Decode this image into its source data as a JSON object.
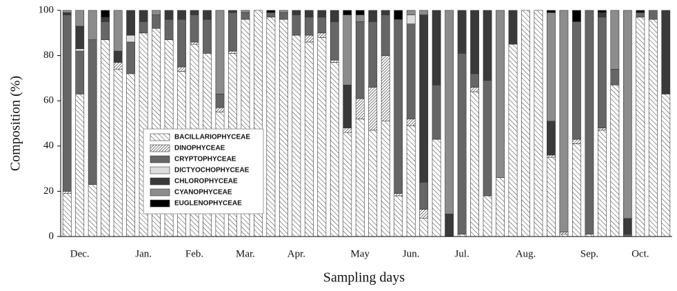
{
  "chart_data": {
    "type": "stacked_bar",
    "xlabel": "Sampling days",
    "ylabel": "Composition (%)",
    "categories": [
      null,
      "Dec.",
      null,
      null,
      null,
      null,
      "Jan.",
      null,
      null,
      null,
      "Feb.",
      null,
      null,
      null,
      "Mar.",
      null,
      null,
      null,
      "Apr.",
      null,
      null,
      null,
      null,
      "May",
      null,
      null,
      null,
      "Jun.",
      null,
      null,
      null,
      "Jul.",
      null,
      null,
      null,
      null,
      "Aug.",
      null,
      null,
      null,
      null,
      "Sep.",
      null,
      null,
      null,
      "Oct.",
      null,
      null
    ],
    "ylim": [
      0,
      100
    ],
    "yticks": [
      0,
      20,
      40,
      60,
      80,
      100
    ],
    "legend": "center-left",
    "series": [
      {
        "name": "BACILLARIOPHYCEAE",
        "color": "#ffffff",
        "hatch": "sparse",
        "values": [
          19,
          63,
          23,
          87,
          74,
          72,
          90,
          92,
          87,
          73,
          85,
          81,
          55,
          81,
          96,
          100,
          97,
          96,
          89,
          86,
          88,
          77,
          46,
          52,
          47,
          51,
          18,
          49,
          8,
          43,
          0,
          1,
          64,
          18,
          26,
          85,
          100,
          100,
          35,
          1,
          41,
          1,
          47,
          67,
          0,
          97,
          96,
          63
        ]
      },
      {
        "name": "DINOPHYCEAE",
        "color": "#ffffff",
        "hatch": "dense",
        "values": [
          1,
          0,
          0,
          0,
          3,
          0,
          0,
          0,
          0,
          2,
          1,
          0,
          2,
          1,
          0,
          0,
          0,
          0,
          0,
          3,
          2,
          1,
          2,
          9,
          19,
          29,
          1,
          3,
          4,
          0,
          0,
          0,
          2,
          0,
          0,
          0,
          0,
          0,
          1,
          1,
          2,
          0,
          1,
          0,
          0,
          0,
          0,
          0
        ]
      },
      {
        "name": "CRYPTOPHYCEAE",
        "color": "#666666",
        "values": [
          78,
          19,
          64,
          8,
          0,
          14,
          5,
          6,
          9,
          21,
          12,
          15,
          6,
          17,
          3,
          0,
          2,
          3,
          9,
          8,
          7,
          17,
          0,
          34,
          29,
          18,
          77,
          42,
          12,
          24,
          0,
          80,
          6,
          51,
          0,
          0,
          0,
          0,
          0,
          0,
          52,
          99,
          49,
          7,
          1,
          2,
          4,
          0
        ]
      },
      {
        "name": "DICTYOCHOPHYCEAE",
        "color": "#dddddd",
        "values": [
          0,
          1,
          0,
          0,
          0,
          3,
          0,
          0,
          0,
          0,
          0,
          0,
          0,
          0,
          0,
          0,
          0,
          0,
          0,
          0,
          0,
          0,
          0,
          0,
          0,
          0,
          0,
          4,
          0,
          0,
          0,
          0,
          0,
          0,
          0,
          0,
          0,
          0,
          0,
          0,
          0,
          0,
          0,
          0,
          0,
          0,
          0,
          0
        ]
      },
      {
        "name": "CHLOROPHYCEAE",
        "color": "#3a3a3a",
        "values": [
          1,
          10,
          0,
          2,
          5,
          11,
          5,
          0,
          4,
          4,
          2,
          4,
          0,
          1,
          0,
          0,
          0,
          0,
          2,
          3,
          3,
          5,
          19,
          0,
          5,
          2,
          0,
          0,
          74,
          33,
          10,
          19,
          28,
          31,
          0,
          15,
          0,
          0,
          15,
          0,
          0,
          0,
          2,
          0,
          7,
          0,
          0,
          37
        ]
      },
      {
        "name": "CYANOPHYCEAE",
        "color": "#8c8c8c",
        "values": [
          1,
          7,
          13,
          0,
          18,
          0,
          0,
          2,
          0,
          0,
          0,
          0,
          37,
          0,
          1,
          0,
          0,
          1,
          0,
          0,
          0,
          0,
          31,
          3,
          0,
          0,
          0,
          2,
          2,
          0,
          90,
          0,
          0,
          0,
          74,
          0,
          0,
          0,
          48,
          98,
          0,
          0,
          0,
          26,
          92,
          0,
          0,
          0
        ]
      },
      {
        "name": "EUGLENOPHYCEAE",
        "color": "#000000",
        "values": [
          0,
          0,
          0,
          3,
          0,
          0,
          0,
          0,
          0,
          0,
          0,
          0,
          0,
          0,
          0,
          0,
          1,
          0,
          0,
          0,
          0,
          0,
          2,
          2,
          0,
          0,
          4,
          0,
          0,
          0,
          0,
          0,
          0,
          0,
          0,
          0,
          0,
          0,
          1,
          0,
          5,
          0,
          1,
          0,
          0,
          1,
          0,
          0
        ]
      }
    ]
  }
}
